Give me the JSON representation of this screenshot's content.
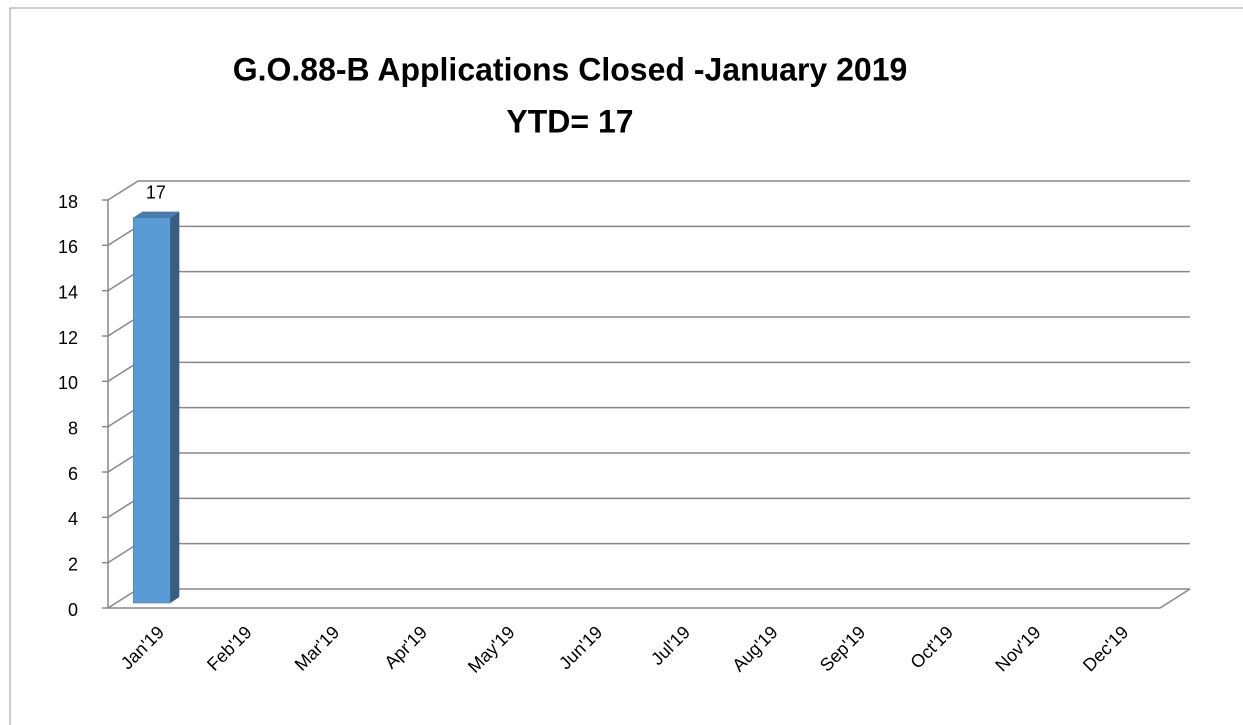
{
  "chart_data": {
    "type": "bar3d",
    "title": "G.O.88-B Applications Closed -January 2019",
    "subtitle": "YTD= 17",
    "categories": [
      "Jan'19",
      "Feb'19",
      "Mar'19",
      "Apr'19",
      "May'19",
      "Jun'19",
      "Jul'19",
      "Aug'19",
      "Sep'19",
      "Oct'19",
      "Nov'19",
      "Dec'19"
    ],
    "values": [
      17,
      null,
      null,
      null,
      null,
      null,
      null,
      null,
      null,
      null,
      null,
      null
    ],
    "color": "#5b9bd5",
    "ylim": [
      0,
      18
    ],
    "yticks": [
      0,
      2,
      4,
      6,
      8,
      10,
      12,
      14,
      16,
      18
    ],
    "grid": true
  }
}
